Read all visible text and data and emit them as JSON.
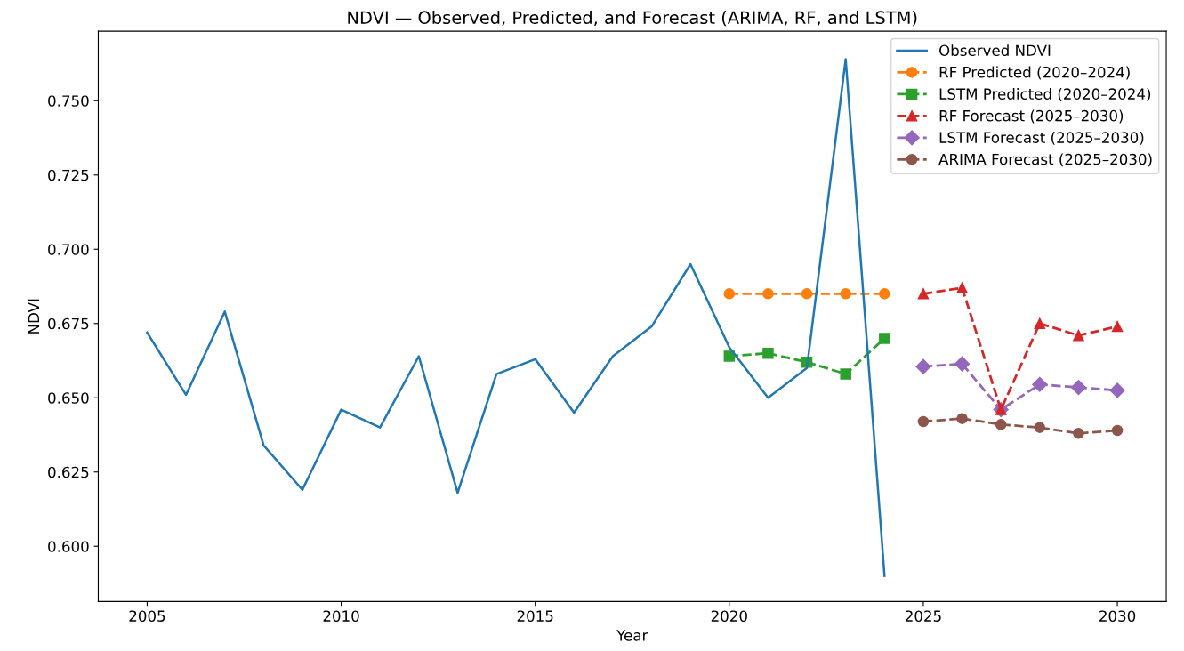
{
  "chart_data": {
    "type": "line",
    "title": "NDVI — Observed, Predicted, and Forecast (ARIMA, RF, and LSTM)",
    "xlabel": "Year",
    "ylabel": "NDVI",
    "xlim": [
      2003.74,
      2031.26
    ],
    "xticks": [
      2005,
      2010,
      2015,
      2020,
      2025,
      2030
    ],
    "ylim": [
      0.5814,
      0.7734
    ],
    "yticks": [
      {
        "value": 0.6,
        "label": "0.600"
      },
      {
        "value": 0.625,
        "label": "0.625"
      },
      {
        "value": 0.65,
        "label": "0.650"
      },
      {
        "value": 0.675,
        "label": "0.675"
      },
      {
        "value": 0.7,
        "label": "0.700"
      },
      {
        "value": 0.725,
        "label": "0.725"
      },
      {
        "value": 0.75,
        "label": "0.750"
      }
    ],
    "grid": false,
    "legend": "top right",
    "series": [
      {
        "name": "Observed NDVI",
        "color": "#1f77b4",
        "marker": "none",
        "line_style": "solid",
        "x": [
          2005,
          2006,
          2007,
          2008,
          2009,
          2010,
          2011,
          2012,
          2013,
          2014,
          2015,
          2016,
          2017,
          2018,
          2019,
          2020,
          2021,
          2022,
          2023,
          2024
        ],
        "values": [
          0.672,
          0.651,
          0.679,
          0.634,
          0.619,
          0.646,
          0.64,
          0.664,
          0.618,
          0.658,
          0.663,
          0.645,
          0.664,
          0.674,
          0.695,
          0.667,
          0.65,
          0.66,
          0.764,
          0.59
        ]
      },
      {
        "name": "RF Predicted (2020–2024)",
        "color": "#ff7f0e",
        "marker": "circle",
        "line_style": "dashed",
        "x": [
          2020,
          2021,
          2022,
          2023,
          2024
        ],
        "values": [
          0.685,
          0.685,
          0.685,
          0.685,
          0.685
        ]
      },
      {
        "name": "LSTM Predicted (2020–2024)",
        "color": "#2ca02c",
        "marker": "square",
        "line_style": "dashed",
        "x": [
          2020,
          2021,
          2022,
          2023,
          2024
        ],
        "values": [
          0.664,
          0.665,
          0.662,
          0.658,
          0.67
        ]
      },
      {
        "name": "RF Forecast (2025–2030)",
        "color": "#d62728",
        "marker": "triangle",
        "line_style": "dashed",
        "x": [
          2025,
          2026,
          2027,
          2028,
          2029,
          2030
        ],
        "values": [
          0.685,
          0.687,
          0.646,
          0.675,
          0.671,
          0.674
        ]
      },
      {
        "name": "LSTM Forecast (2025–2030)",
        "color": "#9467bd",
        "marker": "diamond",
        "line_style": "dashed",
        "x": [
          2025,
          2026,
          2027,
          2028,
          2029,
          2030
        ],
        "values": [
          0.6605,
          0.6614,
          0.646,
          0.6545,
          0.6535,
          0.6525
        ]
      },
      {
        "name": "ARIMA Forecast (2025–2030)",
        "color": "#8c564b",
        "marker": "circle",
        "line_style": "dashed",
        "x": [
          2025,
          2026,
          2027,
          2028,
          2029,
          2030
        ],
        "values": [
          0.642,
          0.643,
          0.641,
          0.64,
          0.638,
          0.639
        ]
      }
    ]
  }
}
